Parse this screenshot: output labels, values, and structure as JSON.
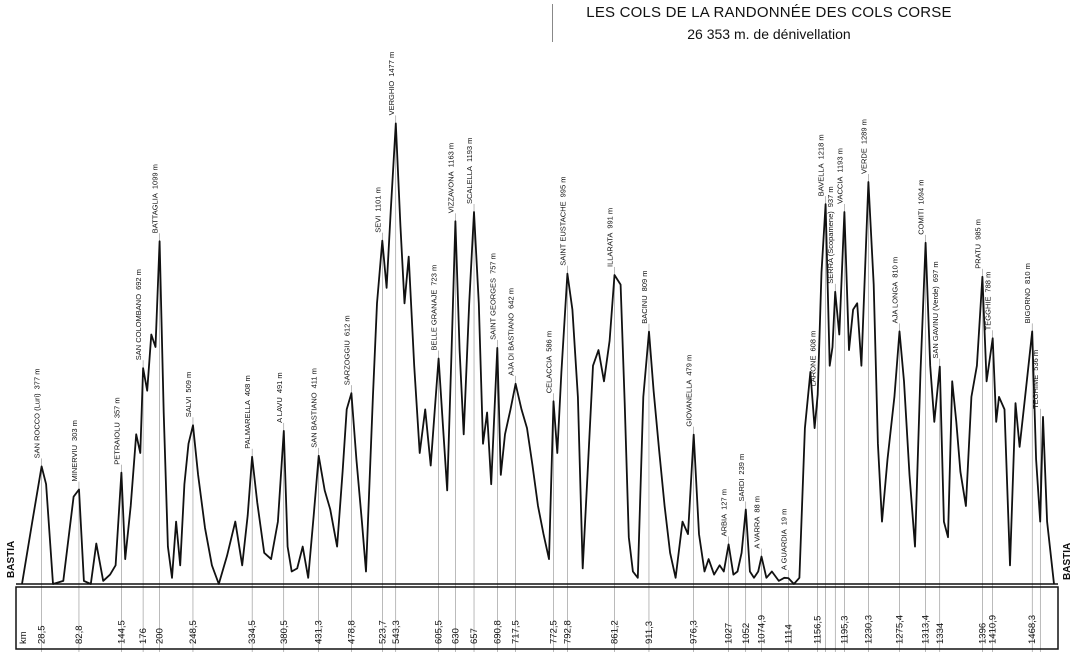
{
  "chart_data": {
    "type": "line",
    "title": "LES COLS DE LA RANDONNÉE DES COLS CORSE",
    "subtitle": "26 353 m. de dénivellation",
    "start_label": "BASTIA",
    "end_label": "BASTIA",
    "km_axis_label": "km",
    "xlim": [
      0,
      1500
    ],
    "ylim": [
      0,
      1520
    ],
    "cols": [
      {
        "name": "SAN ROCCO (Luri)",
        "alt": "377 m",
        "km": 28.5,
        "km_label": "28,5",
        "elev": 377
      },
      {
        "name": "MINERVIU",
        "alt": "303 m",
        "km": 82.8,
        "km_label": "82,8",
        "elev": 303
      },
      {
        "name": "PETRAIOLU",
        "alt": "357 m",
        "km": 144.5,
        "km_label": "144,5",
        "elev": 357
      },
      {
        "name": "SAN COLOMBANO",
        "alt": "692 m",
        "km": 176,
        "km_label": "176",
        "elev": 692
      },
      {
        "name": "BATTAGLIA",
        "alt": "1099 m",
        "km": 200,
        "km_label": "200",
        "elev": 1099
      },
      {
        "name": "SALVI",
        "alt": "509 m",
        "km": 248.5,
        "km_label": "248,5",
        "elev": 509
      },
      {
        "name": "PALMARELLA",
        "alt": "408 m",
        "km": 334.5,
        "km_label": "334,5",
        "elev": 408
      },
      {
        "name": "A LAVU",
        "alt": "491 m",
        "km": 380.5,
        "km_label": "380,5",
        "elev": 491
      },
      {
        "name": "SAN BASTIANO",
        "alt": "411 m",
        "km": 431.3,
        "km_label": "431,3",
        "elev": 411
      },
      {
        "name": "SARZOGGIU",
        "alt": "612 m",
        "km": 478.8,
        "km_label": "478,8",
        "elev": 612
      },
      {
        "name": "SEVI",
        "alt": "1101 m",
        "km": 523.7,
        "km_label": "523,7",
        "elev": 1101
      },
      {
        "name": "VERGHIO",
        "alt": "1477 m",
        "km": 543.3,
        "km_label": "543,3",
        "elev": 1477
      },
      {
        "name": "BELLE GRANAJE",
        "alt": "723 m",
        "km": 605.5,
        "km_label": "605,5",
        "elev": 723
      },
      {
        "name": "VIZZAVONA",
        "alt": "1163 m",
        "km": 630,
        "km_label": "630",
        "elev": 1163
      },
      {
        "name": "SCALELLA",
        "alt": "1193 m",
        "km": 657,
        "km_label": "657",
        "elev": 1193
      },
      {
        "name": "SAINT GEORGES",
        "alt": "757 m",
        "km": 690.8,
        "km_label": "690,8",
        "elev": 757
      },
      {
        "name": "AJA DI BASTIANO",
        "alt": "642 m",
        "km": 717.5,
        "km_label": "717,5",
        "elev": 642
      },
      {
        "name": "CELACCIA",
        "alt": "586 m",
        "km": 772.5,
        "km_label": "772,5",
        "elev": 586
      },
      {
        "name": "SAINT EUSTACHE",
        "alt": "995 m",
        "km": 792.8,
        "km_label": "792,8",
        "elev": 995
      },
      {
        "name": "ILLARATA",
        "alt": "991 m",
        "km": 861.2,
        "km_label": "861,2",
        "elev": 991
      },
      {
        "name": "BACINU",
        "alt": "809 m",
        "km": 911.3,
        "km_label": "911,3",
        "elev": 809
      },
      {
        "name": "GIOVANELLA",
        "alt": "479 m",
        "km": 976.3,
        "km_label": "976,3",
        "elev": 479
      },
      {
        "name": "ARBIA",
        "alt": "127 m",
        "km": 1027,
        "km_label": "1027",
        "elev": 127
      },
      {
        "name": "SARDI",
        "alt": "239 m",
        "km": 1052,
        "km_label": "1052",
        "elev": 239
      },
      {
        "name": "A VARRA",
        "alt": "88 m",
        "km": 1074.9,
        "km_label": "1074,9",
        "elev": 88
      },
      {
        "name": "A GUARDIA",
        "alt": "19 m",
        "km": 1114,
        "km_label": "1114",
        "elev": 19
      },
      {
        "name": "LARONE",
        "alt": "608 m",
        "km": 1156.5,
        "km_label": "1156,5",
        "elev": 608
      },
      {
        "name": "BAVELLA",
        "alt": "1218 m",
        "km": 1168,
        "km_label": "",
        "elev": 1218
      },
      {
        "name": "SERRA (Scopamene)",
        "alt": "937 m",
        "km": 1182,
        "km_label": "",
        "elev": 937
      },
      {
        "name": "VACCIA",
        "alt": "1193 m",
        "km": 1195.3,
        "km_label": "1195,3",
        "elev": 1193
      },
      {
        "name": "VERDE",
        "alt": "1289 m",
        "km": 1230.3,
        "km_label": "1230,3",
        "elev": 1289
      },
      {
        "name": "AJA LONGA",
        "alt": "810 m",
        "km": 1275.4,
        "km_label": "1275,4",
        "elev": 810
      },
      {
        "name": "COMITI",
        "alt": "1094 m",
        "km": 1313.4,
        "km_label": "1313,4",
        "elev": 1094
      },
      {
        "name": "SAN GAVINU (Verde)",
        "alt": "697 m",
        "km": 1334,
        "km_label": "1334",
        "elev": 697
      },
      {
        "name": "PRATU",
        "alt": "985 m",
        "km": 1396,
        "km_label": "1396",
        "elev": 985
      },
      {
        "name": "TEGGHIE",
        "alt": "788 m",
        "km": 1410.9,
        "km_label": "1410,9",
        "elev": 788
      },
      {
        "name": "BIGORNO",
        "alt": "810 m",
        "km": 1468.3,
        "km_label": "1468,3",
        "elev": 810
      },
      {
        "name": "TEGHIME",
        "alt": "536 m",
        "km": 1480,
        "km_label": "",
        "elev": 536
      }
    ],
    "profile": [
      [
        0,
        0
      ],
      [
        15,
        200
      ],
      [
        28.5,
        377
      ],
      [
        35,
        320
      ],
      [
        45,
        0
      ],
      [
        60,
        10
      ],
      [
        75,
        280
      ],
      [
        82.8,
        303
      ],
      [
        90,
        10
      ],
      [
        100,
        0
      ],
      [
        108,
        130
      ],
      [
        118,
        10
      ],
      [
        128,
        30
      ],
      [
        136,
        60
      ],
      [
        144.5,
        357
      ],
      [
        150,
        80
      ],
      [
        158,
        250
      ],
      [
        166,
        480
      ],
      [
        172,
        420
      ],
      [
        176,
        692
      ],
      [
        182,
        620
      ],
      [
        188,
        800
      ],
      [
        194,
        760
      ],
      [
        200,
        1099
      ],
      [
        206,
        550
      ],
      [
        212,
        120
      ],
      [
        218,
        20
      ],
      [
        224,
        200
      ],
      [
        230,
        60
      ],
      [
        236,
        320
      ],
      [
        242,
        450
      ],
      [
        248.5,
        509
      ],
      [
        256,
        350
      ],
      [
        266,
        180
      ],
      [
        276,
        60
      ],
      [
        286,
        0
      ],
      [
        298,
        90
      ],
      [
        310,
        200
      ],
      [
        320,
        60
      ],
      [
        328,
        220
      ],
      [
        334.5,
        408
      ],
      [
        342,
        260
      ],
      [
        352,
        100
      ],
      [
        362,
        80
      ],
      [
        372,
        200
      ],
      [
        380.5,
        491
      ],
      [
        386,
        120
      ],
      [
        392,
        40
      ],
      [
        400,
        50
      ],
      [
        408,
        120
      ],
      [
        416,
        20
      ],
      [
        424,
        220
      ],
      [
        431.3,
        411
      ],
      [
        440,
        300
      ],
      [
        448,
        240
      ],
      [
        458,
        120
      ],
      [
        466,
        360
      ],
      [
        472,
        560
      ],
      [
        478.8,
        612
      ],
      [
        486,
        400
      ],
      [
        494,
        200
      ],
      [
        500,
        40
      ],
      [
        510,
        600
      ],
      [
        516,
        900
      ],
      [
        523.7,
        1101
      ],
      [
        530,
        950
      ],
      [
        536,
        1200
      ],
      [
        543.3,
        1477
      ],
      [
        550,
        1150
      ],
      [
        556,
        900
      ],
      [
        562,
        1050
      ],
      [
        570,
        700
      ],
      [
        578,
        420
      ],
      [
        586,
        560
      ],
      [
        594,
        380
      ],
      [
        600,
        560
      ],
      [
        605.5,
        723
      ],
      [
        612,
        500
      ],
      [
        618,
        300
      ],
      [
        624,
        720
      ],
      [
        630,
        1163
      ],
      [
        636,
        750
      ],
      [
        642,
        480
      ],
      [
        650,
        900
      ],
      [
        657,
        1193
      ],
      [
        664,
        900
      ],
      [
        670,
        450
      ],
      [
        676,
        550
      ],
      [
        682,
        320
      ],
      [
        690.8,
        757
      ],
      [
        696,
        350
      ],
      [
        702,
        480
      ],
      [
        710,
        560
      ],
      [
        717.5,
        642
      ],
      [
        726,
        560
      ],
      [
        734,
        500
      ],
      [
        742,
        380
      ],
      [
        750,
        250
      ],
      [
        758,
        160
      ],
      [
        766,
        80
      ],
      [
        772.5,
        586
      ],
      [
        778,
        420
      ],
      [
        784,
        680
      ],
      [
        792.8,
        995
      ],
      [
        800,
        880
      ],
      [
        808,
        600
      ],
      [
        815,
        50
      ],
      [
        822,
        350
      ],
      [
        830,
        700
      ],
      [
        838,
        750
      ],
      [
        846,
        650
      ],
      [
        854,
        780
      ],
      [
        861.2,
        991
      ],
      [
        870,
        960
      ],
      [
        876,
        580
      ],
      [
        882,
        150
      ],
      [
        888,
        40
      ],
      [
        895,
        20
      ],
      [
        903,
        600
      ],
      [
        911.3,
        809
      ],
      [
        918,
        620
      ],
      [
        926,
        430
      ],
      [
        934,
        250
      ],
      [
        942,
        100
      ],
      [
        950,
        20
      ],
      [
        960,
        200
      ],
      [
        968,
        160
      ],
      [
        976.3,
        479
      ],
      [
        984,
        160
      ],
      [
        992,
        40
      ],
      [
        998,
        80
      ],
      [
        1006,
        30
      ],
      [
        1014,
        60
      ],
      [
        1020,
        40
      ],
      [
        1027,
        127
      ],
      [
        1034,
        30
      ],
      [
        1040,
        40
      ],
      [
        1046,
        100
      ],
      [
        1052,
        239
      ],
      [
        1058,
        40
      ],
      [
        1064,
        20
      ],
      [
        1070,
        40
      ],
      [
        1074.9,
        88
      ],
      [
        1082,
        20
      ],
      [
        1090,
        40
      ],
      [
        1100,
        10
      ],
      [
        1108,
        20
      ],
      [
        1114,
        19
      ],
      [
        1122,
        0
      ],
      [
        1130,
        20
      ],
      [
        1138,
        500
      ],
      [
        1146,
        680
      ],
      [
        1152,
        500
      ],
      [
        1156.5,
        608
      ],
      [
        1162,
        1000
      ],
      [
        1168,
        1218
      ],
      [
        1174,
        700
      ],
      [
        1178,
        760
      ],
      [
        1182,
        937
      ],
      [
        1188,
        800
      ],
      [
        1195.3,
        1193
      ],
      [
        1202,
        750
      ],
      [
        1208,
        880
      ],
      [
        1214,
        900
      ],
      [
        1220,
        700
      ],
      [
        1230.3,
        1289
      ],
      [
        1238,
        960
      ],
      [
        1244,
        450
      ],
      [
        1250,
        200
      ],
      [
        1258,
        400
      ],
      [
        1268,
        600
      ],
      [
        1275.4,
        810
      ],
      [
        1282,
        650
      ],
      [
        1290,
        350
      ],
      [
        1298,
        120
      ],
      [
        1306,
        680
      ],
      [
        1313.4,
        1094
      ],
      [
        1320,
        700
      ],
      [
        1326,
        520
      ],
      [
        1334,
        697
      ],
      [
        1340,
        200
      ],
      [
        1346,
        150
      ],
      [
        1352,
        650
      ],
      [
        1358,
        520
      ],
      [
        1364,
        360
      ],
      [
        1372,
        250
      ],
      [
        1380,
        600
      ],
      [
        1388,
        700
      ],
      [
        1396,
        985
      ],
      [
        1402,
        650
      ],
      [
        1410.9,
        788
      ],
      [
        1416,
        520
      ],
      [
        1420,
        600
      ],
      [
        1428,
        560
      ],
      [
        1436,
        60
      ],
      [
        1444,
        580
      ],
      [
        1450,
        440
      ],
      [
        1458,
        600
      ],
      [
        1468.3,
        810
      ],
      [
        1474,
        400
      ],
      [
        1480,
        200
      ],
      [
        1484,
        536
      ],
      [
        1490,
        200
      ],
      [
        1500,
        0
      ]
    ]
  }
}
